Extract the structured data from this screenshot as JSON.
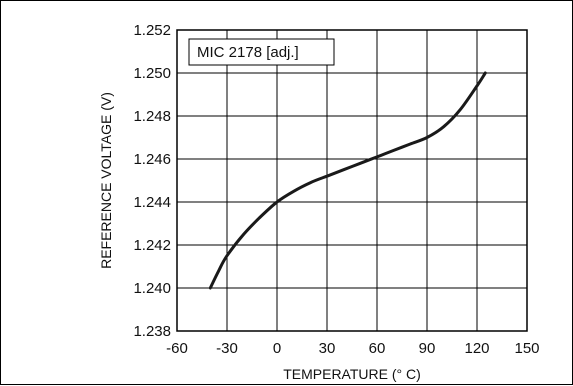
{
  "chart_data": {
    "type": "line",
    "annotation": "MIC 2178 [adj.]",
    "xlabel": "TEMPERATURE (° C)",
    "ylabel": "REFERENCE VOLTAGE (V)",
    "xlim": [
      -60,
      150
    ],
    "ylim": [
      1.238,
      1.252
    ],
    "x_ticks": [
      "-60",
      "-30",
      "0",
      "30",
      "60",
      "90",
      "120",
      "150"
    ],
    "y_ticks": [
      "1.238",
      "1.240",
      "1.242",
      "1.244",
      "1.246",
      "1.248",
      "1.250",
      "1.252"
    ],
    "grid": true,
    "series": [
      {
        "x": [
          -40,
          -35,
          -30,
          -20,
          -10,
          0,
          10,
          20,
          30,
          40,
          50,
          60,
          70,
          80,
          90,
          100,
          110,
          120,
          125
        ],
        "y": [
          1.24,
          1.2408,
          1.2415,
          1.2425,
          1.2433,
          1.244,
          1.2445,
          1.2449,
          1.2452,
          1.2455,
          1.2458,
          1.2461,
          1.2464,
          1.2467,
          1.247,
          1.2475,
          1.2483,
          1.2494,
          1.25
        ]
      }
    ],
    "line_color": "#1a1a1a"
  }
}
